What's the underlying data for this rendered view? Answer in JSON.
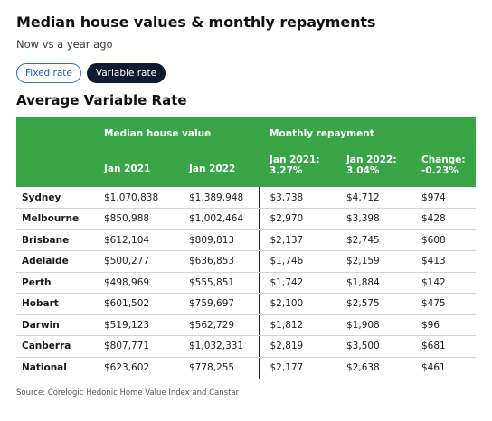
{
  "title": "Median house values & monthly repayments",
  "subtitle": "Now vs a year ago",
  "tabs": [
    {
      "label": "Fixed rate",
      "active": false
    },
    {
      "label": "Variable rate",
      "active": true
    }
  ],
  "section_title": "Average Variable Rate",
  "table": {
    "group_headers": {
      "median": "Median house value",
      "monthly": "Monthly repayment"
    },
    "columns": [
      "Jan 2021",
      "Jan 2022",
      "Jan 2021: 3.27%",
      "Jan 2022: 3.04%",
      "Change: -0.23%"
    ],
    "rows": [
      {
        "city": "Sydney",
        "v2021": "$1,070,838",
        "v2022": "$1,389,948",
        "r2021": "$3,738",
        "r2022": "$4,712",
        "change": "$974"
      },
      {
        "city": "Melbourne",
        "v2021": "$850,988",
        "v2022": "$1,002,464",
        "r2021": "$2,970",
        "r2022": "$3,398",
        "change": "$428"
      },
      {
        "city": "Brisbane",
        "v2021": "$612,104",
        "v2022": "$809,813",
        "r2021": "$2,137",
        "r2022": "$2,745",
        "change": "$608"
      },
      {
        "city": "Adelaide",
        "v2021": "$500,277",
        "v2022": "$636,853",
        "r2021": "$1,746",
        "r2022": "$2,159",
        "change": "$413"
      },
      {
        "city": "Perth",
        "v2021": "$498,969",
        "v2022": "$555,851",
        "r2021": "$1,742",
        "r2022": "$1,884",
        "change": "$142"
      },
      {
        "city": "Hobart",
        "v2021": "$601,502",
        "v2022": "$759,697",
        "r2021": "$2,100",
        "r2022": "$2,575",
        "change": "$475"
      },
      {
        "city": "Darwin",
        "v2021": "$519,123",
        "v2022": "$562,729",
        "r2021": "$1,812",
        "r2022": "$1,908",
        "change": "$96"
      },
      {
        "city": "Canberra",
        "v2021": "$807,771",
        "v2022": "$1,032,331",
        "r2021": "$2,819",
        "r2022": "$3,500",
        "change": "$681"
      },
      {
        "city": "National",
        "v2021": "$623,602",
        "v2022": "$778,255",
        "r2021": "$2,177",
        "r2022": "$2,638",
        "change": "$461"
      }
    ]
  },
  "source": "Source: Corelogic Hedonic Home Value Index and Canstar",
  "colors": {
    "header_green": "#3aa546",
    "active_tab": "#0f1b2e",
    "tab_outline": "#2a6fbf"
  }
}
